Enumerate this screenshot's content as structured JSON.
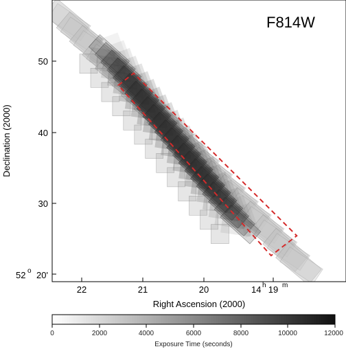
{
  "chart_data": {
    "type": "heatmap",
    "title": "F814W",
    "xlabel": "Right Ascension (2000)",
    "ylabel": "Declination (2000)",
    "x_ticks": [
      "22",
      "21",
      "20",
      "14",
      "19"
    ],
    "x_tick_values": [
      22,
      21,
      20,
      19
    ],
    "ra_hours_prefix": "14",
    "ra_hours_unit": "h",
    "ra_minutes_unit": "m",
    "y_ticks": [
      "50",
      "40",
      "30",
      "20'"
    ],
    "y_tick_values": [
      50,
      40,
      30,
      20
    ],
    "dec_degrees_prefix": "52",
    "dec_degrees_unit": "o",
    "xlim": [
      22.5,
      18.0
    ],
    "ylim": [
      19,
      59.5
    ],
    "grid": false,
    "colorbar": {
      "label": "Exposure Time (seconds)",
      "ticks": [
        "0",
        "2000",
        "4000",
        "6000",
        "8000",
        "10000",
        "12000"
      ],
      "range": [
        0,
        12000
      ],
      "low_color": "#ffffff",
      "high_color": "#111111"
    },
    "footprint_outline": {
      "style": "dashed",
      "color": "#d42a2a",
      "vertices": [
        [
          21.4,
          46.6
        ],
        [
          21.15,
          48.3
        ],
        [
          18.48,
          25.4
        ],
        [
          18.9,
          22.6
        ]
      ]
    },
    "strip": {
      "start": [
        21.55,
        51.0
      ],
      "end": [
        19.4,
        27.0
      ],
      "coverage_start": [
        22.25,
        55.8
      ],
      "coverage_end": [
        18.45,
        21.5
      ]
    }
  }
}
